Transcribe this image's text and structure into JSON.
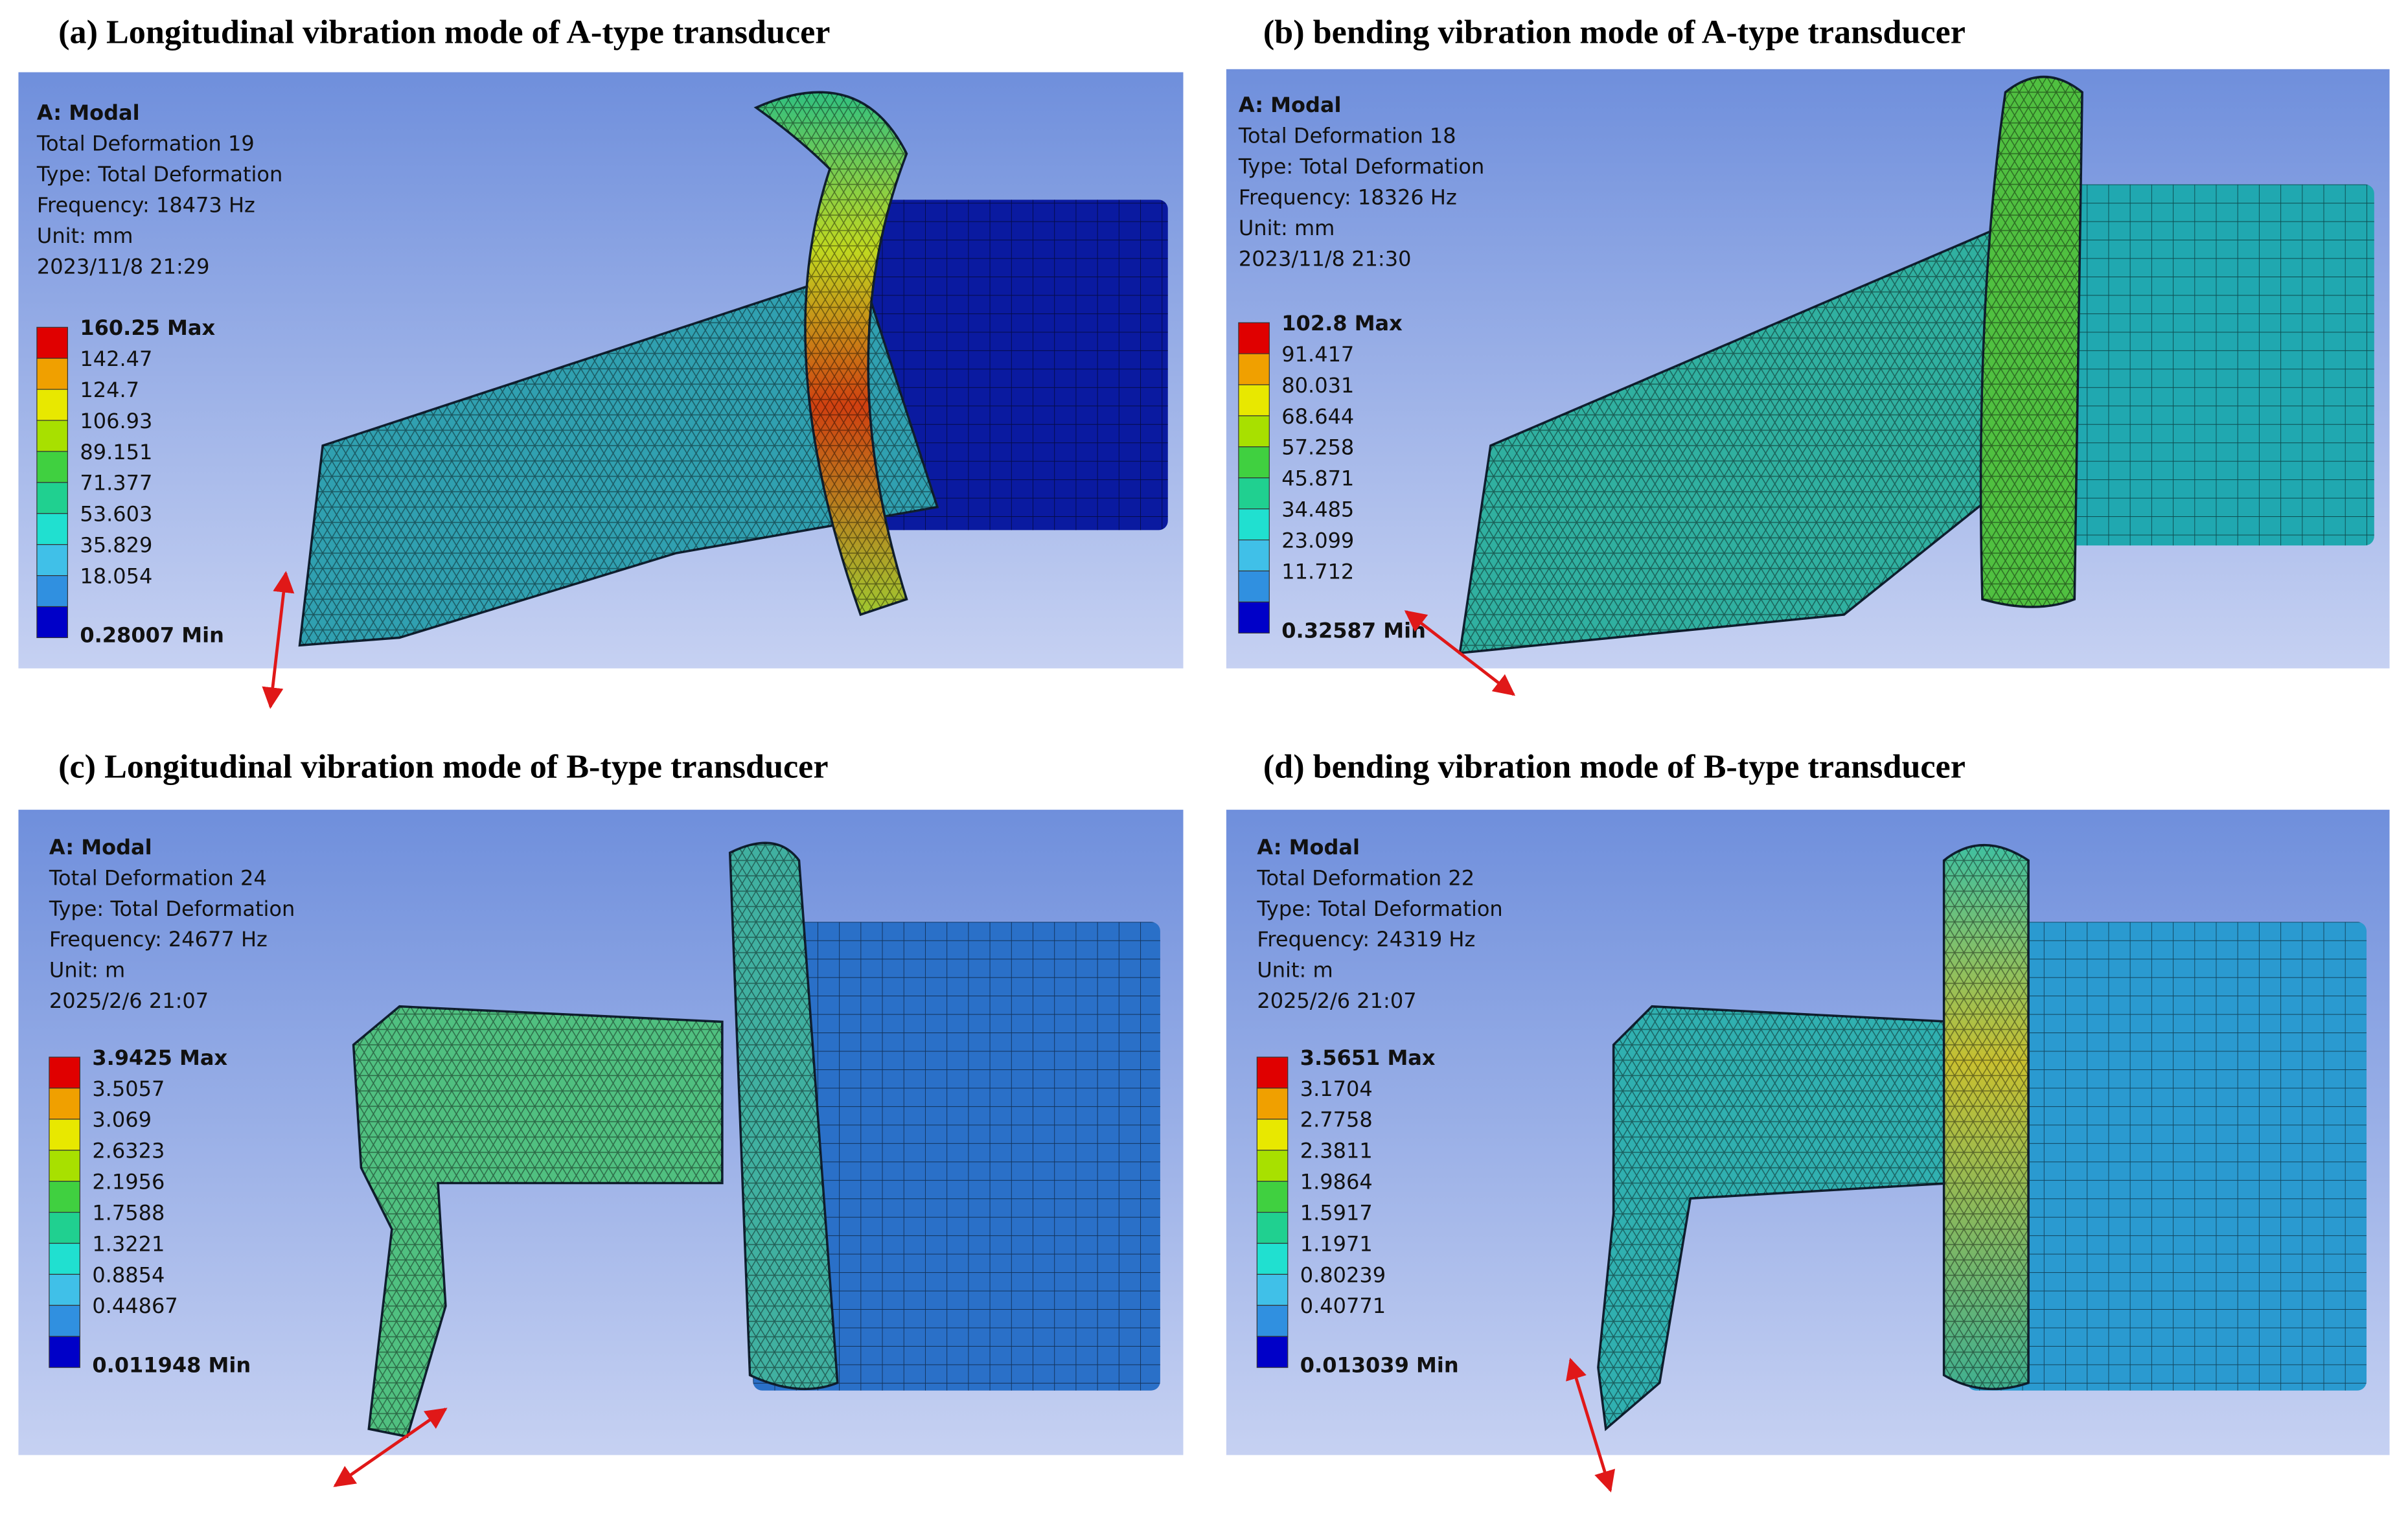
{
  "panels": [
    {
      "caption": "(a) Longitudinal vibration mode of A-type transducer",
      "info": [
        "A: Modal",
        "Total Deformation 19",
        "Type: Total Deformation",
        "Frequency: 18473 Hz",
        "Unit: mm",
        "2023/11/8 21:29"
      ],
      "legend": [
        "160.25 Max",
        "142.47",
        "124.7",
        "106.93",
        "89.151",
        "71.377",
        "53.603",
        "35.829",
        "18.054",
        "0.28007 Min"
      ]
    },
    {
      "caption": "(b) bending vibration mode of A-type transducer",
      "info": [
        "A: Modal",
        "Total Deformation 18",
        "Type: Total Deformation",
        "Frequency: 18326 Hz",
        "Unit: mm",
        "2023/11/8 21:30"
      ],
      "legend": [
        "102.8 Max",
        "91.417",
        "80.031",
        "68.644",
        "57.258",
        "45.871",
        "34.485",
        "23.099",
        "11.712",
        "0.32587 Min"
      ]
    },
    {
      "caption": "(c) Longitudinal vibration mode of B-type transducer",
      "info": [
        "A: Modal",
        "Total Deformation 24",
        "Type: Total Deformation",
        "Frequency: 24677 Hz",
        "Unit: m",
        "2025/2/6 21:07"
      ],
      "legend": [
        "3.9425 Max",
        "3.5057",
        "3.069",
        "2.6323",
        "2.1956",
        "1.7588",
        "1.3221",
        "0.8854",
        "0.44867",
        "0.011948 Min"
      ]
    },
    {
      "caption": "(d) bending vibration mode of B-type transducer",
      "info": [
        "A: Modal",
        "Total Deformation 22",
        "Type: Total Deformation",
        "Frequency: 24319 Hz",
        "Unit: m",
        "2025/2/6 21:07"
      ],
      "legend": [
        "3.5651 Max",
        "3.1704",
        "2.7758",
        "2.3811",
        "1.9864",
        "1.5917",
        "1.1971",
        "0.80239",
        "0.40771",
        "0.013039 Min"
      ]
    }
  ]
}
